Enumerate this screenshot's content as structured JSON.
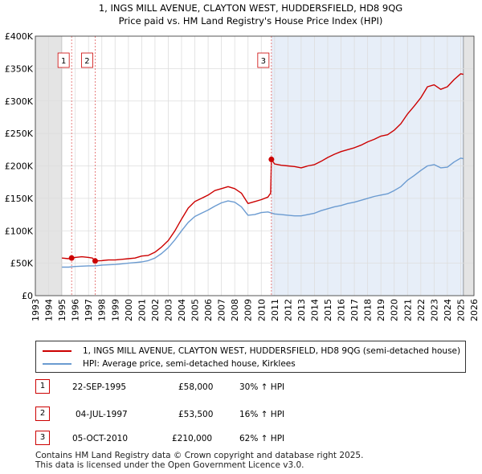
{
  "chart_data": {
    "type": "line",
    "title": "1, INGS MILL AVENUE, CLAYTON WEST, HUDDERSFIELD, HD8 9QG",
    "subtitle": "Price paid vs. HM Land Registry's House Price Index (HPI)",
    "xlim": [
      1993,
      2026
    ],
    "ylim": [
      0,
      400000
    ],
    "x_ticks": [
      "1993",
      "1994",
      "1995",
      "1996",
      "1997",
      "1998",
      "1999",
      "2000",
      "2001",
      "2002",
      "2003",
      "2004",
      "2005",
      "2006",
      "2007",
      "2008",
      "2009",
      "2010",
      "2011",
      "2012",
      "2013",
      "2014",
      "2015",
      "2016",
      "2017",
      "2018",
      "2019",
      "2020",
      "2021",
      "2022",
      "2023",
      "2024",
      "2025",
      "2026"
    ],
    "y_ticks": [
      {
        "value": 0,
        "label": "£0"
      },
      {
        "value": 50000,
        "label": "£50K"
      },
      {
        "value": 100000,
        "label": "£100K"
      },
      {
        "value": 150000,
        "label": "£150K"
      },
      {
        "value": 200000,
        "label": "£200K"
      },
      {
        "value": 250000,
        "label": "£250K"
      },
      {
        "value": 300000,
        "label": "£300K"
      },
      {
        "value": 350000,
        "label": "£350K"
      },
      {
        "value": 400000,
        "label": "£400K"
      }
    ],
    "grid": true,
    "data_range": [
      1995.0,
      2025.2
    ],
    "series": [
      {
        "name": "1, INGS MILL AVENUE, CLAYTON WEST, HUDDERSFIELD, HD8 9QG (semi-detached house)",
        "color": "#cc0000",
        "points": [
          [
            1995.0,
            58000
          ],
          [
            1995.5,
            57000
          ],
          [
            1995.73,
            58000
          ],
          [
            1996.0,
            59000
          ],
          [
            1996.5,
            60000
          ],
          [
            1997.0,
            59000
          ],
          [
            1997.3,
            58000
          ],
          [
            1997.5,
            53500
          ],
          [
            1998.0,
            54000
          ],
          [
            1998.5,
            55000
          ],
          [
            1999.0,
            55000
          ],
          [
            1999.5,
            56000
          ],
          [
            2000.0,
            57000
          ],
          [
            2000.5,
            58000
          ],
          [
            2001.0,
            61000
          ],
          [
            2001.5,
            62000
          ],
          [
            2002.0,
            67000
          ],
          [
            2002.5,
            75000
          ],
          [
            2003.0,
            85000
          ],
          [
            2003.5,
            100000
          ],
          [
            2004.0,
            118000
          ],
          [
            2004.5,
            135000
          ],
          [
            2005.0,
            145000
          ],
          [
            2005.5,
            150000
          ],
          [
            2006.0,
            155000
          ],
          [
            2006.5,
            162000
          ],
          [
            2007.0,
            165000
          ],
          [
            2007.5,
            168000
          ],
          [
            2008.0,
            165000
          ],
          [
            2008.5,
            158000
          ],
          [
            2009.0,
            142000
          ],
          [
            2009.5,
            145000
          ],
          [
            2010.0,
            148000
          ],
          [
            2010.5,
            152000
          ],
          [
            2010.7,
            158000
          ],
          [
            2010.76,
            210000
          ],
          [
            2011.0,
            203000
          ],
          [
            2011.5,
            201000
          ],
          [
            2012.0,
            200000
          ],
          [
            2012.5,
            199000
          ],
          [
            2013.0,
            197000
          ],
          [
            2013.5,
            200000
          ],
          [
            2014.0,
            202000
          ],
          [
            2014.5,
            207000
          ],
          [
            2015.0,
            213000
          ],
          [
            2015.5,
            218000
          ],
          [
            2016.0,
            222000
          ],
          [
            2016.5,
            225000
          ],
          [
            2017.0,
            228000
          ],
          [
            2017.5,
            232000
          ],
          [
            2018.0,
            237000
          ],
          [
            2018.5,
            241000
          ],
          [
            2019.0,
            246000
          ],
          [
            2019.5,
            248000
          ],
          [
            2020.0,
            255000
          ],
          [
            2020.5,
            265000
          ],
          [
            2021.0,
            280000
          ],
          [
            2021.5,
            292000
          ],
          [
            2022.0,
            305000
          ],
          [
            2022.5,
            322000
          ],
          [
            2023.0,
            325000
          ],
          [
            2023.5,
            318000
          ],
          [
            2024.0,
            322000
          ],
          [
            2024.5,
            333000
          ],
          [
            2025.0,
            342000
          ],
          [
            2025.2,
            341000
          ]
        ]
      },
      {
        "name": "HPI: Average price, semi-detached house, Kirklees",
        "color": "#6b9bd1",
        "points": [
          [
            1995.0,
            44000
          ],
          [
            1995.5,
            44000
          ],
          [
            1996.0,
            45000
          ],
          [
            1996.5,
            45500
          ],
          [
            1997.0,
            46000
          ],
          [
            1997.5,
            46000
          ],
          [
            1998.0,
            47000
          ],
          [
            1998.5,
            47500
          ],
          [
            1999.0,
            48000
          ],
          [
            1999.5,
            49000
          ],
          [
            2000.0,
            50000
          ],
          [
            2000.5,
            51000
          ],
          [
            2001.0,
            52000
          ],
          [
            2001.5,
            54000
          ],
          [
            2002.0,
            58000
          ],
          [
            2002.5,
            65000
          ],
          [
            2003.0,
            74000
          ],
          [
            2003.5,
            86000
          ],
          [
            2004.0,
            100000
          ],
          [
            2004.5,
            113000
          ],
          [
            2005.0,
            122000
          ],
          [
            2005.5,
            127000
          ],
          [
            2006.0,
            132000
          ],
          [
            2006.5,
            138000
          ],
          [
            2007.0,
            143000
          ],
          [
            2007.5,
            146000
          ],
          [
            2008.0,
            144000
          ],
          [
            2008.5,
            137000
          ],
          [
            2009.0,
            124000
          ],
          [
            2009.5,
            125000
          ],
          [
            2010.0,
            128000
          ],
          [
            2010.5,
            129000
          ],
          [
            2011.0,
            126000
          ],
          [
            2011.5,
            125000
          ],
          [
            2012.0,
            124000
          ],
          [
            2012.5,
            123000
          ],
          [
            2013.0,
            123000
          ],
          [
            2013.5,
            125000
          ],
          [
            2014.0,
            127000
          ],
          [
            2014.5,
            131000
          ],
          [
            2015.0,
            134000
          ],
          [
            2015.5,
            137000
          ],
          [
            2016.0,
            139000
          ],
          [
            2016.5,
            142000
          ],
          [
            2017.0,
            144000
          ],
          [
            2017.5,
            147000
          ],
          [
            2018.0,
            150000
          ],
          [
            2018.5,
            153000
          ],
          [
            2019.0,
            155000
          ],
          [
            2019.5,
            157000
          ],
          [
            2020.0,
            162000
          ],
          [
            2020.5,
            168000
          ],
          [
            2021.0,
            178000
          ],
          [
            2021.5,
            185000
          ],
          [
            2022.0,
            193000
          ],
          [
            2022.5,
            200000
          ],
          [
            2023.0,
            202000
          ],
          [
            2023.5,
            197000
          ],
          [
            2024.0,
            198000
          ],
          [
            2024.5,
            206000
          ],
          [
            2025.0,
            212000
          ],
          [
            2025.2,
            211000
          ]
        ]
      }
    ],
    "sale_markers": [
      {
        "label": "1",
        "x": 1995.73,
        "y": 58000
      },
      {
        "label": "2",
        "x": 1997.5,
        "y": 53500
      },
      {
        "label": "3",
        "x": 2010.76,
        "y": 210000
      }
    ]
  },
  "legend": {
    "property_label": "1, INGS MILL AVENUE, CLAYTON WEST, HUDDERSFIELD, HD8 9QG (semi-detached house)",
    "hpi_label": "HPI: Average price, semi-detached house, Kirklees"
  },
  "sales": [
    {
      "num": "1",
      "date": "22-SEP-1995",
      "price": "£58,000",
      "hpi": "30% ↑ HPI"
    },
    {
      "num": "2",
      "date": "04-JUL-1997",
      "price": "£53,500",
      "hpi": "16% ↑ HPI"
    },
    {
      "num": "3",
      "date": "05-OCT-2010",
      "price": "£210,000",
      "hpi": "62% ↑ HPI"
    }
  ],
  "footer": "Contains HM Land Registry data © Crown copyright and database right 2025.\nThis data is licensed under the Open Government Licence v3.0."
}
